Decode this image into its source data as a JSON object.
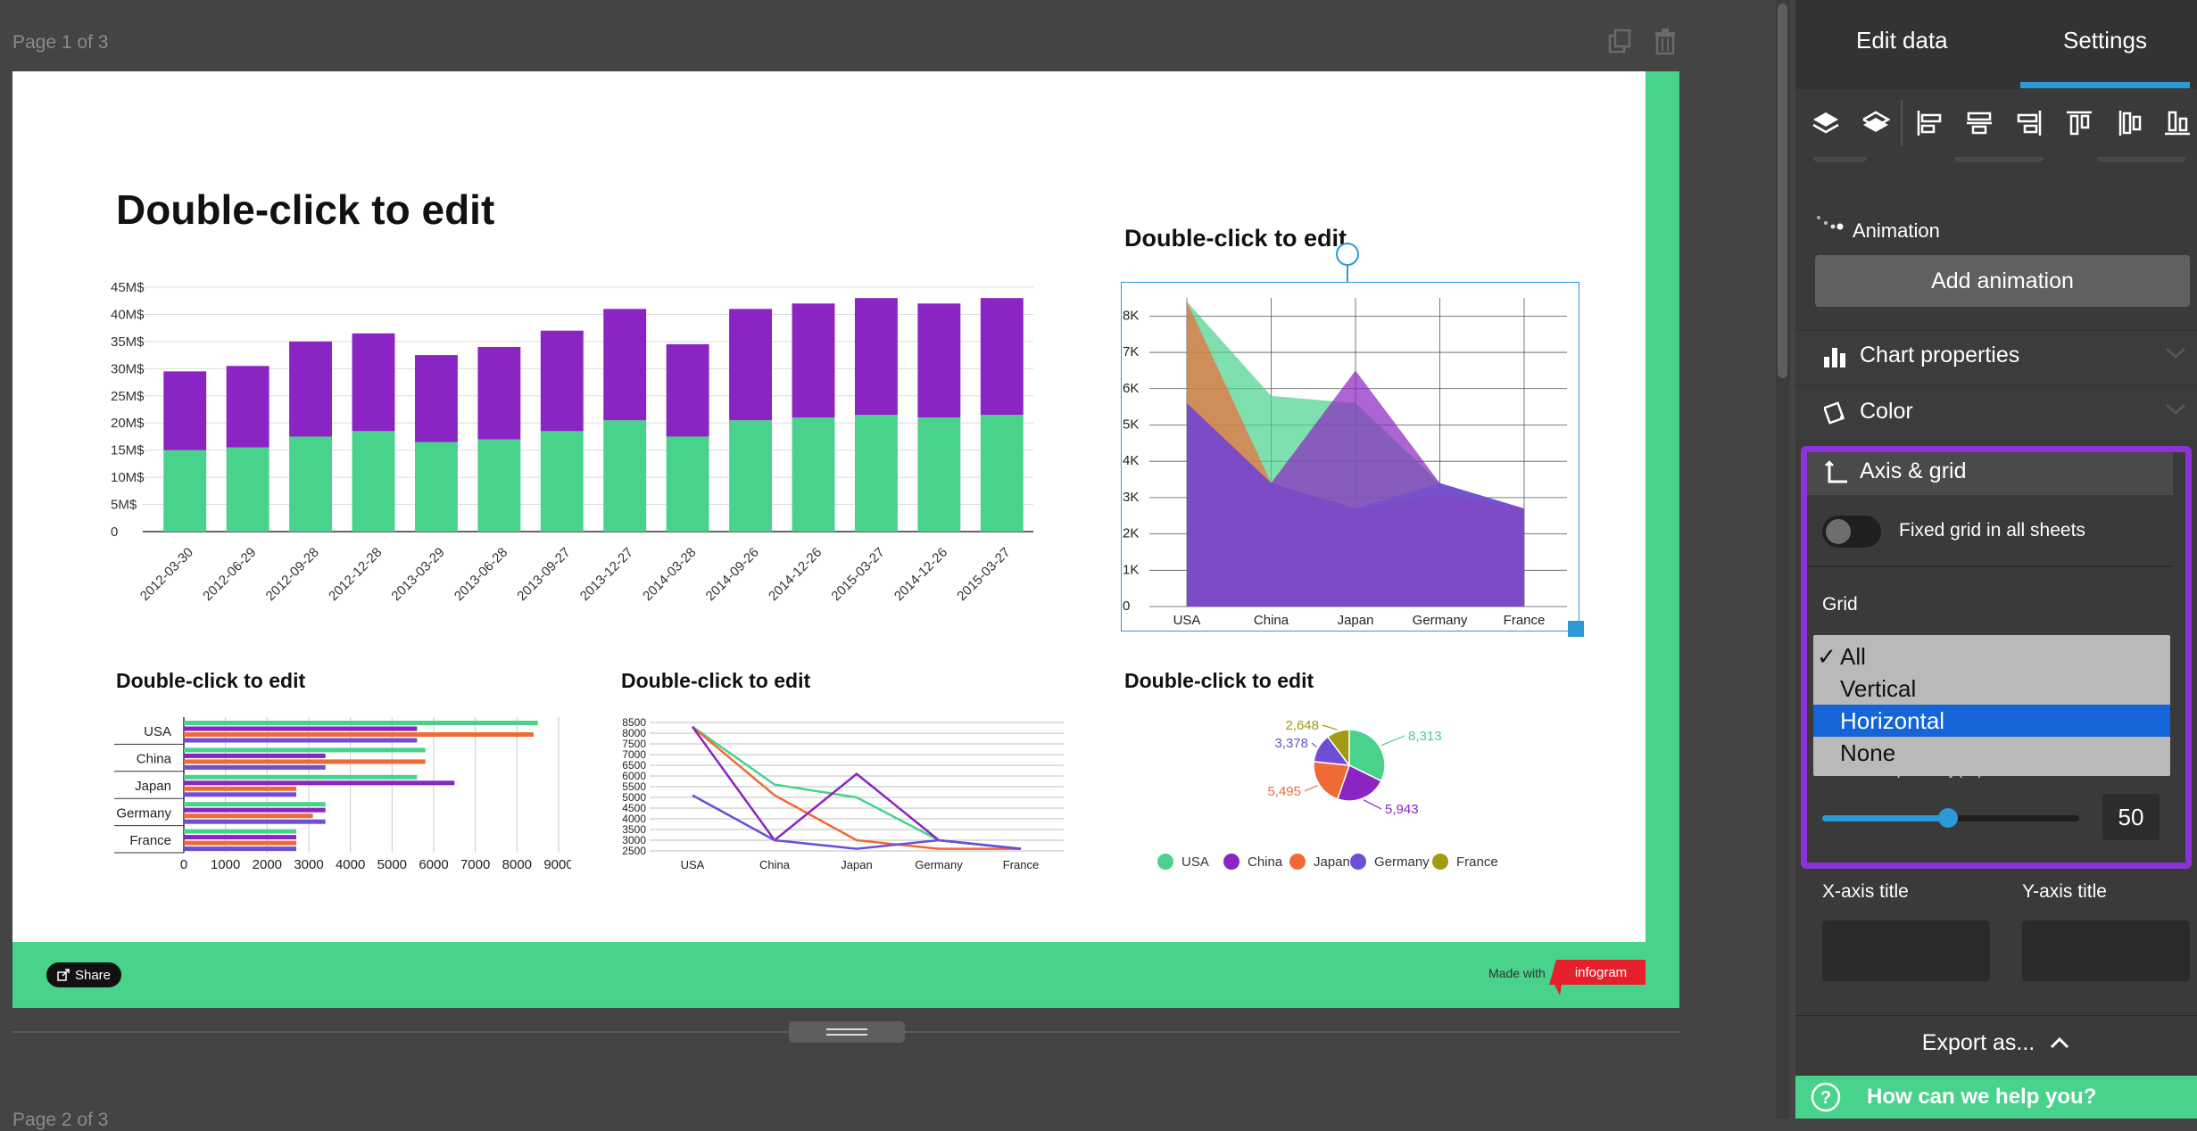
{
  "editor": {
    "page_label": "Page 1 of 3",
    "page2_label": "Page 2 of 3",
    "copy_icon": "copy-icon",
    "trash_icon": "trash-icon"
  },
  "slide": {
    "main_title": "Double-click to edit",
    "area_title": "Double-click to edit",
    "bar_title": "Double-click to edit",
    "line_title": "Double-click to edit",
    "pie_title": "Double-click to edit",
    "share_label": "Share",
    "made_with": "Made with",
    "brand": "infogram",
    "colors": {
      "green": "#48d28c",
      "purple": "#8a24c2",
      "orange": "#f06a35",
      "violet": "#6f4ed6",
      "olive": "#a39a12"
    }
  },
  "panel": {
    "tabs": [
      "Edit data",
      "Settings"
    ],
    "active_tab": "Settings",
    "animation_label": "Animation",
    "add_animation": "Add animation",
    "chart_properties": "Chart properties",
    "color": "Color",
    "axis_grid": "Axis & grid",
    "fixed_grid": "Fixed grid in all sheets",
    "grid_label": "Grid",
    "grid_options": [
      "All",
      "Vertical",
      "Horizontal",
      "None"
    ],
    "grid_checked": "All",
    "grid_highlighted": "Horizontal",
    "transparency_label": "Grid transparency(%)",
    "transparency_value": "50",
    "x_axis_title": "X-axis title",
    "y_axis_title": "Y-axis title",
    "export": "Export as...",
    "help": "How can we help you?"
  },
  "chart_data": [
    {
      "type": "bar",
      "stacked": true,
      "categories": [
        "2012-03-30",
        "2012-06-29",
        "2012-09-28",
        "2012-12-28",
        "2013-03-29",
        "2013-06-28",
        "2013-09-27",
        "2013-12-27",
        "2014-03-28",
        "2014-09-26",
        "2014-12-26",
        "2015-03-27",
        "2014-12-26",
        "2015-03-27"
      ],
      "series": [
        {
          "color": "#48d28c",
          "values": [
            15,
            15.5,
            17.5,
            18.5,
            16.5,
            17,
            18.5,
            20.5,
            17.5,
            20.5,
            21,
            21.5,
            21,
            21.5
          ]
        },
        {
          "color": "#8a24c2",
          "values": [
            14.5,
            15,
            17.5,
            18,
            16,
            17,
            18.5,
            20.5,
            17,
            20.5,
            21,
            21.5,
            21,
            21.5
          ]
        }
      ],
      "yticks": [
        "45M$",
        "40M$",
        "35M$",
        "30M$",
        "25M$",
        "20M$",
        "15M$",
        "10M$",
        "5M$",
        "0"
      ],
      "ylim": [
        0,
        45
      ]
    },
    {
      "type": "area",
      "categories": [
        "USA",
        "China",
        "Japan",
        "Germany",
        "France"
      ],
      "series": [
        {
          "color": "#48d28c",
          "values": [
            8400,
            5800,
            5600,
            3400,
            2700
          ]
        },
        {
          "color": "#f06a35",
          "values": [
            8400,
            3400,
            2700,
            3100,
            2700
          ]
        },
        {
          "color": "#8a24c2",
          "values": [
            5600,
            3400,
            6500,
            3400,
            2700
          ]
        },
        {
          "color": "#6f4ed6",
          "values": [
            5600,
            3400,
            2700,
            3400,
            2700
          ]
        }
      ],
      "yticks": [
        "8K",
        "7K",
        "6K",
        "5K",
        "4K",
        "3K",
        "2K",
        "1K",
        "0"
      ],
      "ylim": [
        0,
        8500
      ]
    },
    {
      "type": "bar",
      "orientation": "horizontal",
      "categories": [
        "USA",
        "China",
        "Japan",
        "Germany",
        "France"
      ],
      "series": [
        {
          "color": "#48d28c",
          "values": [
            8500,
            5800,
            5600,
            3400,
            2700
          ]
        },
        {
          "color": "#8a24c2",
          "values": [
            5600,
            3400,
            6500,
            3400,
            2700
          ]
        },
        {
          "color": "#f06a35",
          "values": [
            8400,
            5800,
            2700,
            3100,
            2700
          ]
        },
        {
          "color": "#6f4ed6",
          "values": [
            5600,
            3400,
            2700,
            3400,
            2700
          ]
        }
      ],
      "xticks": [
        "0",
        "1000",
        "2000",
        "3000",
        "4000",
        "5000",
        "6000",
        "7000",
        "8000",
        "9000"
      ],
      "xlim": [
        0,
        9000
      ]
    },
    {
      "type": "line",
      "categories": [
        "USA",
        "China",
        "Japan",
        "Germany",
        "France"
      ],
      "series": [
        {
          "color": "#48d28c",
          "values": [
            8300,
            5600,
            5000,
            3000,
            2600
          ]
        },
        {
          "color": "#f06a35",
          "values": [
            8300,
            5100,
            3000,
            2600,
            2600
          ]
        },
        {
          "color": "#8a24c2",
          "values": [
            8300,
            3000,
            6100,
            3000,
            2600
          ]
        },
        {
          "color": "#6f4ed6",
          "values": [
            5100,
            3000,
            2600,
            3000,
            2600
          ]
        }
      ],
      "yticks": [
        "8500",
        "8000",
        "7500",
        "7000",
        "6500",
        "6000",
        "5500",
        "5000",
        "4500",
        "4000",
        "3500",
        "3000",
        "2500"
      ],
      "ylim": [
        2500,
        8500
      ]
    },
    {
      "type": "pie",
      "slices": [
        {
          "label": "USA",
          "value": 8313,
          "display": "8,313",
          "color": "#48d28c"
        },
        {
          "label": "China",
          "value": 5943,
          "display": "5,943",
          "color": "#8a24c2"
        },
        {
          "label": "Japan",
          "value": 5495,
          "display": "5,495",
          "color": "#f06a35"
        },
        {
          "label": "Germany",
          "value": 3378,
          "display": "3,378",
          "color": "#6f4ed6"
        },
        {
          "label": "France",
          "value": 2648,
          "display": "2,648",
          "color": "#a39a12"
        }
      ],
      "legend": [
        "USA",
        "China",
        "Japan",
        "Germany",
        "France"
      ]
    }
  ]
}
